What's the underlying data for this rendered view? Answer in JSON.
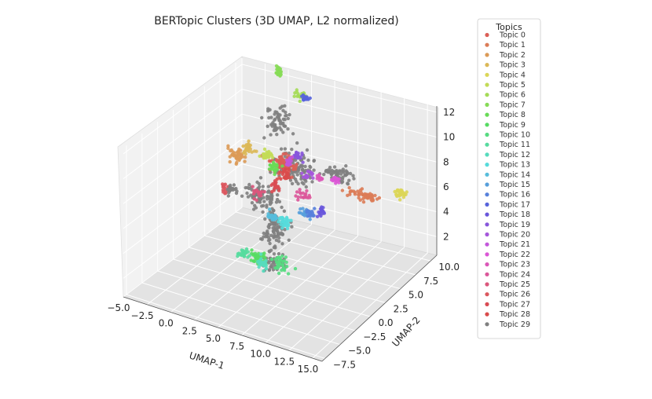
{
  "chart_data": {
    "type": "scatter",
    "projection": "3d",
    "title": "BERTopic Clusters (3D UMAP, L2 normalized)",
    "xlabel": "UMAP-1",
    "ylabel": "UMAP-2",
    "zlabel": "",
    "xticks": [
      "−5.0",
      "−2.5",
      "0.0",
      "2.5",
      "5.0",
      "7.5",
      "10.0",
      "12.5",
      "15.0"
    ],
    "yticks": [
      "−7.5",
      "−5.0",
      "−2.5",
      "0.0",
      "2.5",
      "5.0",
      "7.5",
      "10.0"
    ],
    "zticks": [
      "2",
      "4",
      "6",
      "8",
      "10",
      "12"
    ],
    "xlim": [
      -5,
      16
    ],
    "ylim": [
      -8,
      11
    ],
    "zlim": [
      0.5,
      12.5
    ],
    "grid": true,
    "legend": {
      "title": "Topics",
      "placement": "right",
      "entries": [
        "Topic 0",
        "Topic 1",
        "Topic 2",
        "Topic 3",
        "Topic 4",
        "Topic 5",
        "Topic 6",
        "Topic 7",
        "Topic 8",
        "Topic 9",
        "Topic 10",
        "Topic 11",
        "Topic 12",
        "Topic 13",
        "Topic 14",
        "Topic 15",
        "Topic 16",
        "Topic 17",
        "Topic 18",
        "Topic 19",
        "Topic 20",
        "Topic 21",
        "Topic 22",
        "Topic 23",
        "Topic 24",
        "Topic 25",
        "Topic 26",
        "Topic 27",
        "Topic 28",
        "Topic 29"
      ]
    },
    "colors": [
      "#db5f57",
      "#db7c57",
      "#db9a57",
      "#dbb857",
      "#dbd657",
      "#c3db57",
      "#a5db57",
      "#87db57",
      "#69db57",
      "#57db63",
      "#57db81",
      "#57db9f",
      "#57dbbd",
      "#57dbdb",
      "#57bddb",
      "#579fdb",
      "#5781db",
      "#5763db",
      "#6957db",
      "#8757db",
      "#a557db",
      "#c357db",
      "#db57d6",
      "#db57b8",
      "#db579a",
      "#db577c",
      "#db575e",
      "#d94b53",
      "#d94b4b",
      "#808080"
    ],
    "noise_color": "#808080",
    "clusters": [
      {
        "topic": 0,
        "center": [
          4.5,
          3.5,
          8.8
        ],
        "spread": [
          1.2,
          0.8,
          0.7
        ],
        "n": 70
      },
      {
        "topic": 1,
        "center": [
          13.5,
          3.0,
          8.4
        ],
        "spread": [
          1.8,
          0.5,
          0.4
        ],
        "n": 50
      },
      {
        "topic": 2,
        "center": [
          0.2,
          2.5,
          9.0
        ],
        "spread": [
          0.8,
          0.5,
          0.6
        ],
        "n": 40
      },
      {
        "topic": 3,
        "center": [
          1.0,
          3.0,
          9.6
        ],
        "spread": [
          0.6,
          0.5,
          0.4
        ],
        "n": 30
      },
      {
        "topic": 4,
        "center": [
          17.0,
          3.5,
          9.0
        ],
        "spread": [
          0.6,
          0.4,
          0.3
        ],
        "n": 30
      },
      {
        "topic": 5,
        "center": [
          3.0,
          3.0,
          9.4
        ],
        "spread": [
          0.6,
          0.4,
          0.4
        ],
        "n": 25
      },
      {
        "topic": 6,
        "center": [
          4.0,
          7.0,
          12.8
        ],
        "spread": [
          0.5,
          0.4,
          0.3
        ],
        "n": 22
      },
      {
        "topic": 7,
        "center": [
          1.0,
          8.0,
          13.7
        ],
        "spread": [
          0.3,
          0.3,
          0.4
        ],
        "n": 20
      },
      {
        "topic": 8,
        "center": [
          2.5,
          5.0,
          7.5
        ],
        "spread": [
          0.6,
          0.4,
          0.4
        ],
        "n": 25
      },
      {
        "topic": 9,
        "center": [
          6.0,
          -3.0,
          4.2
        ],
        "spread": [
          1.0,
          0.5,
          0.4
        ],
        "n": 35
      },
      {
        "topic": 10,
        "center": [
          7.0,
          -1.0,
          3.2
        ],
        "spread": [
          0.9,
          0.5,
          0.5
        ],
        "n": 35
      },
      {
        "topic": 11,
        "center": [
          4.0,
          -2.5,
          4.0
        ],
        "spread": [
          0.8,
          0.4,
          0.4
        ],
        "n": 25
      },
      {
        "topic": 12,
        "center": [
          5.5,
          -1.5,
          3.0
        ],
        "spread": [
          0.7,
          0.4,
          0.4
        ],
        "n": 25
      },
      {
        "topic": 13,
        "center": [
          6.5,
          0.5,
          5.8
        ],
        "spread": [
          0.8,
          0.4,
          0.4
        ],
        "n": 30
      },
      {
        "topic": 14,
        "center": [
          5.5,
          0.0,
          6.2
        ],
        "spread": [
          0.5,
          0.3,
          0.3
        ],
        "n": 20
      },
      {
        "topic": 15,
        "center": [
          8.0,
          1.5,
          6.5
        ],
        "spread": [
          0.6,
          0.4,
          0.4
        ],
        "n": 20
      },
      {
        "topic": 16,
        "center": [
          9.0,
          1.0,
          6.8
        ],
        "spread": [
          0.5,
          0.4,
          0.4
        ],
        "n": 18
      },
      {
        "topic": 17,
        "center": [
          4.5,
          7.0,
          12.7
        ],
        "spread": [
          0.5,
          0.3,
          0.2
        ],
        "n": 15
      },
      {
        "topic": 18,
        "center": [
          9.5,
          2.0,
          6.6
        ],
        "spread": [
          0.5,
          0.3,
          0.4
        ],
        "n": 18
      },
      {
        "topic": 19,
        "center": [
          6.0,
          3.5,
          9.8
        ],
        "spread": [
          0.5,
          0.3,
          0.4
        ],
        "n": 20
      },
      {
        "topic": 20,
        "center": [
          7.5,
          3.0,
          8.8
        ],
        "spread": [
          0.6,
          0.4,
          0.4
        ],
        "n": 18
      },
      {
        "topic": 21,
        "center": [
          5.5,
          3.0,
          9.4
        ],
        "spread": [
          0.4,
          0.3,
          0.3
        ],
        "n": 15
      },
      {
        "topic": 22,
        "center": [
          10.0,
          3.5,
          8.7
        ],
        "spread": [
          0.4,
          0.3,
          0.3
        ],
        "n": 15
      },
      {
        "topic": 23,
        "center": [
          9.0,
          2.5,
          9.0
        ],
        "spread": [
          0.4,
          0.3,
          0.3
        ],
        "n": 12
      },
      {
        "topic": 24,
        "center": [
          7.5,
          2.0,
          7.5
        ],
        "spread": [
          0.6,
          0.4,
          0.4
        ],
        "n": 20
      },
      {
        "topic": 25,
        "center": [
          3.0,
          1.5,
          7.0
        ],
        "spread": [
          0.6,
          0.4,
          0.4
        ],
        "n": 18
      },
      {
        "topic": 26,
        "center": [
          -0.5,
          1.5,
          6.6
        ],
        "spread": [
          0.5,
          0.3,
          0.4
        ],
        "n": 18
      },
      {
        "topic": 27,
        "center": [
          4.5,
          2.0,
          7.8
        ],
        "spread": [
          0.4,
          0.3,
          0.5
        ],
        "n": 20
      },
      {
        "topic": 28,
        "center": [
          5.0,
          3.0,
          8.3
        ],
        "spread": [
          0.5,
          0.4,
          0.5
        ],
        "n": 25
      },
      {
        "topic": 29,
        "center": [
          0.5,
          1.0,
          6.9
        ],
        "spread": [
          0.6,
          0.4,
          0.4
        ],
        "n": 20
      }
    ],
    "noise": [
      {
        "center": [
          6.0,
          3.0,
          9.0
        ],
        "spread": [
          2.0,
          1.0,
          1.2
        ],
        "n": 120
      },
      {
        "center": [
          10.5,
          3.0,
          9.5
        ],
        "spread": [
          1.5,
          0.7,
          0.5
        ],
        "n": 60
      },
      {
        "center": [
          3.0,
          2.0,
          6.5
        ],
        "spread": [
          1.6,
          0.8,
          1.0
        ],
        "n": 90
      },
      {
        "center": [
          5.5,
          0.5,
          5.0
        ],
        "spread": [
          1.4,
          0.8,
          1.2
        ],
        "n": 90
      },
      {
        "center": [
          2.5,
          5.5,
          11.0
        ],
        "spread": [
          1.2,
          1.0,
          1.2
        ],
        "n": 60
      },
      {
        "center": [
          6.5,
          -1.5,
          3.5
        ],
        "spread": [
          1.2,
          0.8,
          0.7
        ],
        "n": 50
      }
    ]
  }
}
